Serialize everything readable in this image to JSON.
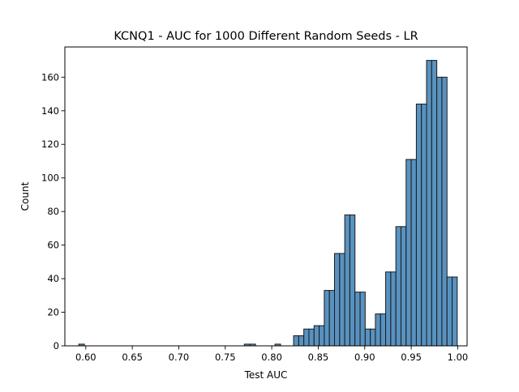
{
  "chart_data": {
    "type": "bar",
    "title": "KCNQ1 - AUC for 1000 Different Random Seeds - LR",
    "xlabel": "Test AUC",
    "ylabel": "Count",
    "xlim": [
      0.5775,
      1.0101
    ],
    "ylim": [
      0,
      178
    ],
    "xticks": [
      0.6,
      0.65,
      0.7,
      0.75,
      0.8,
      0.85,
      0.9,
      0.95,
      1.0
    ],
    "xtick_labels": [
      "0.60",
      "0.65",
      "0.70",
      "0.75",
      "0.80",
      "0.85",
      "0.90",
      "0.95",
      "1.00"
    ],
    "yticks": [
      0,
      20,
      40,
      60,
      80,
      100,
      120,
      140,
      160
    ],
    "ytick_labels": [
      "0",
      "20",
      "40",
      "60",
      "80",
      "100",
      "120",
      "140",
      "160"
    ],
    "grid": false,
    "bar_color": "#5892c0",
    "edge_color": "#1a1a1a",
    "bins": [
      {
        "start": 0.5875,
        "end": 0.5925,
        "count": 0
      },
      {
        "start": 0.5925,
        "end": 0.5985,
        "count": 1
      },
      {
        "start": 0.7705,
        "end": 0.7765,
        "count": 1
      },
      {
        "start": 0.7765,
        "end": 0.7825,
        "count": 1
      },
      {
        "start": 0.8035,
        "end": 0.8095,
        "count": 1
      },
      {
        "start": 0.8235,
        "end": 0.829,
        "count": 6
      },
      {
        "start": 0.829,
        "end": 0.8345,
        "count": 6
      },
      {
        "start": 0.8345,
        "end": 0.84,
        "count": 10
      },
      {
        "start": 0.84,
        "end": 0.8455,
        "count": 10
      },
      {
        "start": 0.8455,
        "end": 0.851,
        "count": 12
      },
      {
        "start": 0.851,
        "end": 0.8565,
        "count": 12
      },
      {
        "start": 0.8565,
        "end": 0.862,
        "count": 33
      },
      {
        "start": 0.862,
        "end": 0.8675,
        "count": 33
      },
      {
        "start": 0.8675,
        "end": 0.873,
        "count": 55
      },
      {
        "start": 0.873,
        "end": 0.8785,
        "count": 55
      },
      {
        "start": 0.8785,
        "end": 0.884,
        "count": 78
      },
      {
        "start": 0.884,
        "end": 0.8895,
        "count": 78
      },
      {
        "start": 0.8895,
        "end": 0.895,
        "count": 32
      },
      {
        "start": 0.895,
        "end": 0.9005,
        "count": 32
      },
      {
        "start": 0.9005,
        "end": 0.906,
        "count": 10
      },
      {
        "start": 0.906,
        "end": 0.9115,
        "count": 10
      },
      {
        "start": 0.9115,
        "end": 0.917,
        "count": 19
      },
      {
        "start": 0.917,
        "end": 0.9225,
        "count": 19
      },
      {
        "start": 0.9225,
        "end": 0.928,
        "count": 44
      },
      {
        "start": 0.928,
        "end": 0.9335,
        "count": 44
      },
      {
        "start": 0.9335,
        "end": 0.939,
        "count": 71
      },
      {
        "start": 0.939,
        "end": 0.9445,
        "count": 71
      },
      {
        "start": 0.9445,
        "end": 0.95,
        "count": 111
      },
      {
        "start": 0.95,
        "end": 0.9555,
        "count": 111
      },
      {
        "start": 0.9555,
        "end": 0.961,
        "count": 144
      },
      {
        "start": 0.961,
        "end": 0.9665,
        "count": 144
      },
      {
        "start": 0.9665,
        "end": 0.972,
        "count": 170
      },
      {
        "start": 0.972,
        "end": 0.9775,
        "count": 170
      },
      {
        "start": 0.9775,
        "end": 0.983,
        "count": 160
      },
      {
        "start": 0.983,
        "end": 0.9885,
        "count": 160
      },
      {
        "start": 0.9885,
        "end": 0.994,
        "count": 41
      },
      {
        "start": 0.994,
        "end": 0.9995,
        "count": 41
      }
    ]
  }
}
